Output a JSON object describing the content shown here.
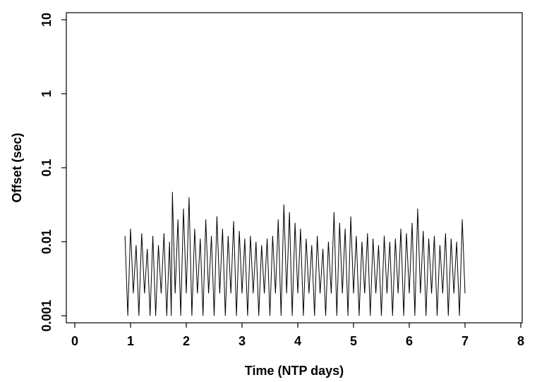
{
  "chart_data": {
    "type": "line",
    "title": "",
    "xlabel": "Time (NTP days)",
    "ylabel": "Offset (sec)",
    "xlim": [
      0,
      8
    ],
    "ylim": [
      0.001,
      10
    ],
    "y_scale": "log",
    "x_ticks": [
      0,
      1,
      2,
      3,
      4,
      5,
      6,
      7,
      8
    ],
    "x_tick_labels": [
      "0",
      "1",
      "2",
      "3",
      "4",
      "5",
      "6",
      "7",
      "8"
    ],
    "y_ticks": [
      0.001,
      0.01,
      0.1,
      1,
      10
    ],
    "y_tick_labels": [
      "0.001",
      "0.01",
      "0.1",
      "1",
      "10"
    ],
    "grid": false,
    "legend": "none",
    "line_color": "#000000",
    "series": [
      {
        "x": [
          0.9,
          0.95,
          1.0,
          1.05,
          1.1,
          1.15,
          1.2,
          1.25,
          1.3,
          1.35,
          1.4,
          1.45,
          1.5,
          1.55,
          1.6,
          1.65,
          1.7,
          1.73,
          1.75,
          1.8,
          1.85,
          1.9,
          1.95,
          2.0,
          2.05,
          2.1,
          2.15,
          2.2,
          2.25,
          2.3,
          2.35,
          2.4,
          2.45,
          2.5,
          2.55,
          2.6,
          2.65,
          2.7,
          2.75,
          2.8,
          2.85,
          2.9,
          2.95,
          3.0,
          3.05,
          3.1,
          3.15,
          3.2,
          3.25,
          3.3,
          3.35,
          3.4,
          3.45,
          3.5,
          3.55,
          3.6,
          3.65,
          3.7,
          3.75,
          3.8,
          3.85,
          3.9,
          3.95,
          4.0,
          4.05,
          4.1,
          4.15,
          4.2,
          4.25,
          4.3,
          4.35,
          4.4,
          4.45,
          4.5,
          4.55,
          4.6,
          4.65,
          4.7,
          4.75,
          4.8,
          4.85,
          4.9,
          4.95,
          5.0,
          5.05,
          5.1,
          5.15,
          5.2,
          5.25,
          5.3,
          5.35,
          5.4,
          5.45,
          5.5,
          5.55,
          5.6,
          5.65,
          5.7,
          5.75,
          5.8,
          5.85,
          5.9,
          5.95,
          6.0,
          6.05,
          6.1,
          6.15,
          6.2,
          6.25,
          6.3,
          6.35,
          6.4,
          6.45,
          6.5,
          6.55,
          6.6,
          6.65,
          6.7,
          6.75,
          6.8,
          6.85,
          6.9,
          6.95,
          7.0
        ],
        "y": [
          0.012,
          0.001,
          0.015,
          0.002,
          0.009,
          0.001,
          0.013,
          0.002,
          0.008,
          0.001,
          0.012,
          0.001,
          0.009,
          0.002,
          0.013,
          0.001,
          0.01,
          0.001,
          0.047,
          0.002,
          0.02,
          0.001,
          0.028,
          0.002,
          0.04,
          0.001,
          0.015,
          0.002,
          0.011,
          0.001,
          0.02,
          0.002,
          0.012,
          0.001,
          0.022,
          0.002,
          0.015,
          0.001,
          0.012,
          0.002,
          0.019,
          0.001,
          0.014,
          0.002,
          0.011,
          0.001,
          0.012,
          0.002,
          0.01,
          0.001,
          0.009,
          0.002,
          0.011,
          0.001,
          0.012,
          0.002,
          0.02,
          0.001,
          0.032,
          0.002,
          0.025,
          0.001,
          0.018,
          0.002,
          0.015,
          0.001,
          0.011,
          0.002,
          0.009,
          0.001,
          0.012,
          0.002,
          0.008,
          0.001,
          0.01,
          0.002,
          0.025,
          0.001,
          0.018,
          0.002,
          0.015,
          0.001,
          0.022,
          0.002,
          0.012,
          0.001,
          0.01,
          0.002,
          0.013,
          0.001,
          0.011,
          0.002,
          0.009,
          0.001,
          0.012,
          0.002,
          0.01,
          0.001,
          0.011,
          0.002,
          0.015,
          0.001,
          0.013,
          0.002,
          0.018,
          0.001,
          0.028,
          0.002,
          0.014,
          0.001,
          0.011,
          0.002,
          0.012,
          0.001,
          0.009,
          0.002,
          0.013,
          0.001,
          0.011,
          0.002,
          0.01,
          0.001,
          0.02,
          0.002
        ]
      }
    ]
  }
}
